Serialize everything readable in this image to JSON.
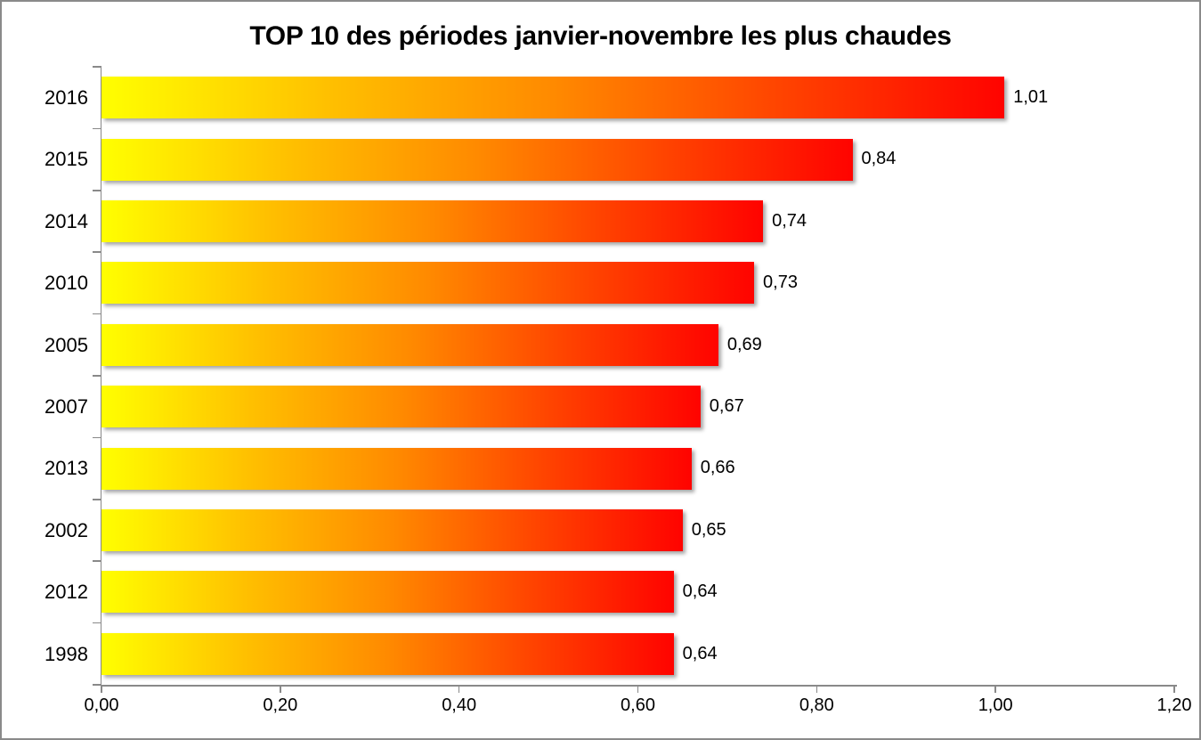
{
  "frame": {
    "background": "#FFFFFF",
    "border_color": "#8A8A8A"
  },
  "chart_data": {
    "type": "bar",
    "orientation": "horizontal",
    "title": "TOP 10 des périodes janvier-novembre les plus chaudes",
    "categories": [
      "2016",
      "2015",
      "2014",
      "2010",
      "2005",
      "2007",
      "2013",
      "2002",
      "2012",
      "1998"
    ],
    "values": [
      1.01,
      0.84,
      0.74,
      0.73,
      0.69,
      0.67,
      0.66,
      0.65,
      0.64,
      0.64
    ],
    "data_labels": [
      "1,01",
      "0,84",
      "0,74",
      "0,73",
      "0,69",
      "0,67",
      "0,66",
      "0,65",
      "0,64",
      "0,64"
    ],
    "xlim": [
      0,
      1.2
    ],
    "x_ticks": [
      0,
      0.2,
      0.4,
      0.6,
      0.8,
      1.0,
      1.2
    ],
    "x_tick_labels": [
      "0,00",
      "0,20",
      "0,40",
      "0,60",
      "0,80",
      "1,00",
      "1,20"
    ],
    "xlabel": "",
    "ylabel": "",
    "grid": false,
    "legend": false,
    "bar_gradient": [
      "#FFFF00",
      "#FFC000",
      "#FF8A00",
      "#FF4400",
      "#FF0300"
    ],
    "axis_color": "#898989",
    "text_color": "#000000"
  }
}
